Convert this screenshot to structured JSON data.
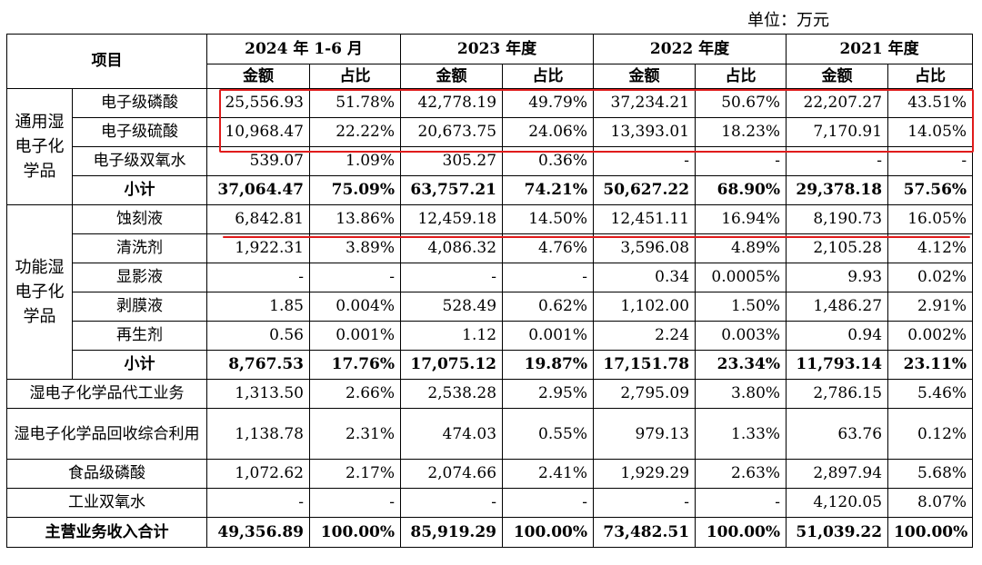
{
  "unit_label": "单位：万元",
  "header": {
    "item": "项目",
    "periods": [
      "2024 年 1-6 月",
      "2023 年度",
      "2022 年度",
      "2021 年度"
    ],
    "amount": "金额",
    "ratio": "占比"
  },
  "groups": {
    "general": "通用湿电子化学品",
    "functional": "功能湿电子化学品"
  },
  "rows": [
    {
      "label": "电子级磷酸",
      "cells": [
        "25,556.93",
        "51.78%",
        "42,778.19",
        "49.79%",
        "37,234.21",
        "50.67%",
        "22,207.27",
        "43.51%"
      ]
    },
    {
      "label": "电子级硫酸",
      "cells": [
        "10,968.47",
        "22.22%",
        "20,673.75",
        "24.06%",
        "13,393.01",
        "18.23%",
        "7,170.91",
        "14.05%"
      ]
    },
    {
      "label": "电子级双氧水",
      "cells": [
        "539.07",
        "1.09%",
        "305.27",
        "0.36%",
        "-",
        "-",
        "-",
        "-"
      ]
    },
    {
      "label": "小计",
      "cells": [
        "37,064.47",
        "75.09%",
        "63,757.21",
        "74.21%",
        "50,627.22",
        "68.90%",
        "29,378.18",
        "57.56%"
      ]
    },
    {
      "label": "蚀刻液",
      "cells": [
        "6,842.81",
        "13.86%",
        "12,459.18",
        "14.50%",
        "12,451.11",
        "16.94%",
        "8,190.73",
        "16.05%"
      ]
    },
    {
      "label": "清洗剂",
      "cells": [
        "1,922.31",
        "3.89%",
        "4,086.32",
        "4.76%",
        "3,596.08",
        "4.89%",
        "2,105.28",
        "4.12%"
      ]
    },
    {
      "label": "显影液",
      "cells": [
        "-",
        "-",
        "-",
        "-",
        "0.34",
        "0.0005%",
        "9.93",
        "0.02%"
      ]
    },
    {
      "label": "剥膜液",
      "cells": [
        "1.85",
        "0.004%",
        "528.49",
        "0.62%",
        "1,102.00",
        "1.50%",
        "1,486.27",
        "2.91%"
      ]
    },
    {
      "label": "再生剂",
      "cells": [
        "0.56",
        "0.001%",
        "1.12",
        "0.001%",
        "2.24",
        "0.003%",
        "0.94",
        "0.002%"
      ]
    },
    {
      "label": "小计",
      "cells": [
        "8,767.53",
        "17.76%",
        "17,075.12",
        "19.87%",
        "17,151.78",
        "23.34%",
        "11,793.14",
        "23.11%"
      ]
    },
    {
      "label": "湿电子化学品代工业务",
      "cells": [
        "1,313.50",
        "2.66%",
        "2,538.28",
        "2.95%",
        "2,795.09",
        "3.80%",
        "2,786.15",
        "5.46%"
      ]
    },
    {
      "label": "湿电子化学品回收综合利用",
      "cells": [
        "1,138.78",
        "2.31%",
        "474.03",
        "0.55%",
        "979.13",
        "1.33%",
        "63.76",
        "0.12%"
      ]
    },
    {
      "label": "食品级磷酸",
      "cells": [
        "1,072.62",
        "2.17%",
        "2,074.66",
        "2.41%",
        "1,929.29",
        "2.63%",
        "2,897.94",
        "5.68%"
      ]
    },
    {
      "label": "工业双氧水",
      "cells": [
        "-",
        "-",
        "-",
        "-",
        "-",
        "-",
        "4,120.05",
        "8.07%"
      ]
    },
    {
      "label": "主营业务收入合计",
      "cells": [
        "49,356.89",
        "100.00%",
        "85,919.29",
        "100.00%",
        "73,482.51",
        "100.00%",
        "51,039.22",
        "100.00%"
      ]
    }
  ],
  "annotation_color": "#e01b1b"
}
